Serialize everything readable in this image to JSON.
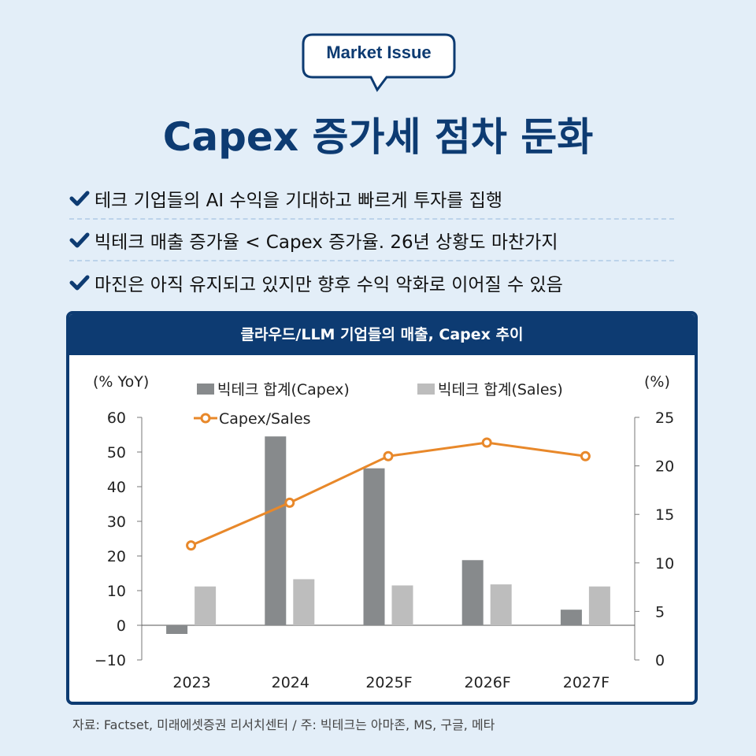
{
  "badge": "Market Issue",
  "title": "Capex 증가세 점차 둔화",
  "bullets": [
    "테크 기업들의 AI 수익을 기대하고 빠르게 투자를 집행",
    "빅테크 매출 증가율 < Capex 증가율. 26년 상황도 마찬가지",
    "마진은 아직 유지되고 있지만 향후 수익 악화로 이어질 수 있음"
  ],
  "colors": {
    "navy": "#0d3b72",
    "capex_bar": "#878a8c",
    "sales_bar": "#bdbdbd",
    "ratio_line": "#e8882a",
    "background": "#e3eef8"
  },
  "chart_data": {
    "type": "bar",
    "title": "클라우드/LLM 기업들의 매출, Capex 추이",
    "categories": [
      "2023",
      "2024",
      "2025F",
      "2026F",
      "2027F"
    ],
    "ylabel_left": "(% YoY)",
    "ylabel_right": "(%)",
    "ylim_left": [
      -10,
      60
    ],
    "ylim_right": [
      0,
      25
    ],
    "yticks_left": [
      "60",
      "50",
      "40",
      "30",
      "20",
      "10",
      "0",
      "−10"
    ],
    "yticks_right": [
      "25",
      "20",
      "15",
      "10",
      "5",
      "0"
    ],
    "legend_position": "top",
    "series": [
      {
        "name": "빅테크 합계(Capex)",
        "type": "bar",
        "axis": "left",
        "values": [
          -2.5,
          54.5,
          45.3,
          18.8,
          4.5
        ]
      },
      {
        "name": "빅테크 합계(Sales)",
        "type": "bar",
        "axis": "left",
        "values": [
          11.2,
          13.3,
          11.5,
          11.8,
          11.2
        ]
      },
      {
        "name": "Capex/Sales",
        "type": "line",
        "axis": "right",
        "values": [
          11.8,
          16.2,
          21.0,
          22.4,
          21.0
        ]
      }
    ]
  },
  "source": "자료: Factset, 미래에셋증권 리서치센터 / 주: 빅테크는 아마존, MS, 구글, 메타"
}
